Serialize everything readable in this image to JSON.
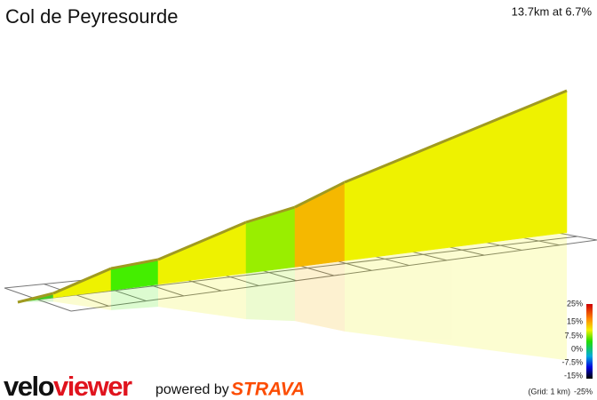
{
  "title": "Col de Peyresourde",
  "summary": "13.7km at 6.7%",
  "legend": {
    "labels": [
      "25%",
      "15%",
      "7.5%",
      "0%",
      "-7.5%",
      "-15%",
      "-25%"
    ],
    "grid_note": "(Grid: 1 km)"
  },
  "footer": {
    "logo_part1": "velo",
    "logo_part2": "viewer",
    "powered_by": "powered by",
    "brand": "STRAVA"
  }
}
